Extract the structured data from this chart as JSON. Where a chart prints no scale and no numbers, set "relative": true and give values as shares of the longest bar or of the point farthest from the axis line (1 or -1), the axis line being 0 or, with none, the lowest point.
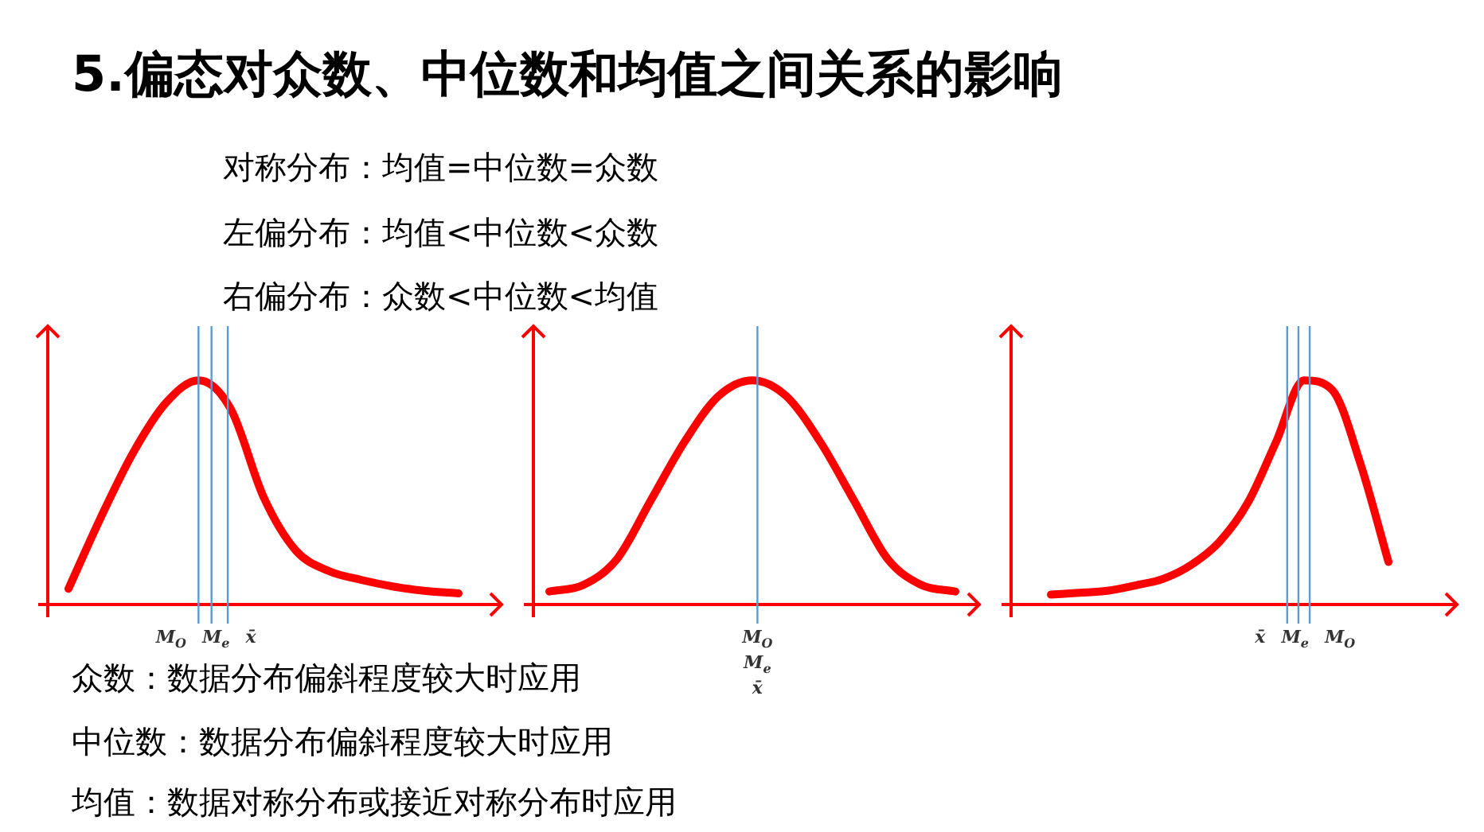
{
  "chart_data": [
    {
      "type": "other",
      "title": "5.偏态对众数、中位数和均值之间关系的影响",
      "annotations": [
        "对称分布：均值=中位数=众数",
        "左偏分布：均值<中位数<众数",
        "右偏分布：众数<中位数<均值",
        "众数：数据分布偏斜程度较大时应用",
        "中位数：数据分布偏斜程度较大时应用",
        "均值：数据对称分布或接近对称分布时应用"
      ]
    },
    {
      "type": "line",
      "relative": true,
      "categories": [
        null,
        null,
        null,
        null,
        null,
        null,
        null,
        null,
        null,
        null,
        null,
        null,
        null
      ],
      "series": [
        {
          "color": "#ff0000",
          "values": [
            0.07,
            0.39,
            0.68,
            0.9,
            1,
            0.87,
            0.48,
            0.24,
            0.15,
            0.11,
            0.08,
            0.06,
            0.05
          ]
        }
      ],
      "annotations": [
        "M$_{O}$",
        "M$_{e}$",
        "x̄"
      ]
    },
    {
      "type": "line",
      "relative": true,
      "categories": [
        null,
        null,
        null,
        null,
        null,
        null,
        null,
        null,
        null,
        null,
        null,
        null,
        null
      ],
      "series": [
        {
          "color": "#ff0000",
          "values": [
            0.058,
            0.087,
            0.203,
            0.465,
            0.727,
            0.93,
            1,
            0.93,
            0.727,
            0.465,
            0.203,
            0.087,
            0.058
          ]
        }
      ],
      "annotations": [
        "M$_{O}$",
        "M$_{e}$",
        "x̄"
      ]
    },
    {
      "type": "line",
      "relative": true,
      "categories": [
        null,
        null,
        null,
        null,
        null,
        null,
        null,
        null,
        null,
        null,
        null,
        null,
        null
      ],
      "series": [
        {
          "color": "#ff0000",
          "values": [
            0.044,
            0.052,
            0.061,
            0.085,
            0.115,
            0.178,
            0.281,
            0.454,
            0.724,
            1,
            0.957,
            0.63,
            0.19
          ]
        }
      ],
      "annotations": [
        "x̄",
        "M$_{e}$",
        "M$_{O}$"
      ]
    }
  ]
}
